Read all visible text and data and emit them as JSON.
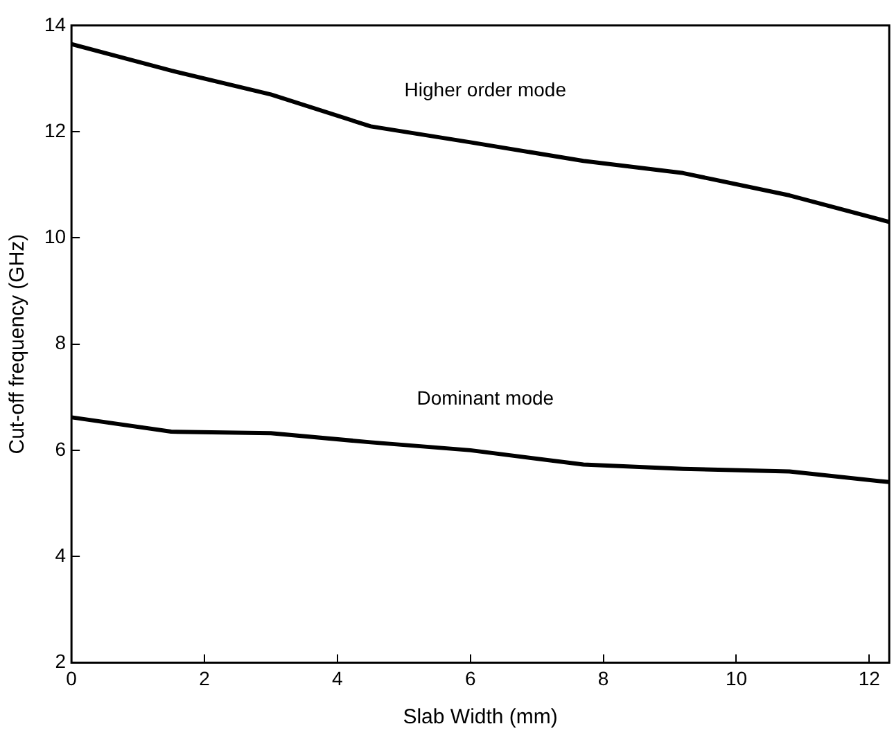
{
  "chart_data": {
    "type": "line",
    "xlabel": "Slab Width (mm)",
    "ylabel": "Cut-off frequency (GHz)",
    "xlim": [
      0,
      12.3
    ],
    "xticks": [
      0,
      2,
      4,
      6,
      8,
      10,
      12
    ],
    "ylim": [
      2,
      14
    ],
    "yticks": [
      2,
      4,
      6,
      8,
      10,
      12,
      14
    ],
    "grid": false,
    "legend": false,
    "marker": "none",
    "line_style": "solid",
    "x": [
      0,
      1.5,
      3,
      4.5,
      6,
      7.7,
      9.2,
      10.8,
      12.3
    ],
    "series": [
      {
        "name": "Higher order mode",
        "color": "#000000",
        "values": [
          13.65,
          13.15,
          12.7,
          12.1,
          11.8,
          11.45,
          11.22,
          10.8,
          10.3
        ]
      },
      {
        "name": "Dominant mode",
        "color": "#000000",
        "values": [
          6.62,
          6.35,
          6.32,
          6.15,
          6.0,
          5.73,
          5.65,
          5.6,
          5.4
        ]
      }
    ]
  }
}
